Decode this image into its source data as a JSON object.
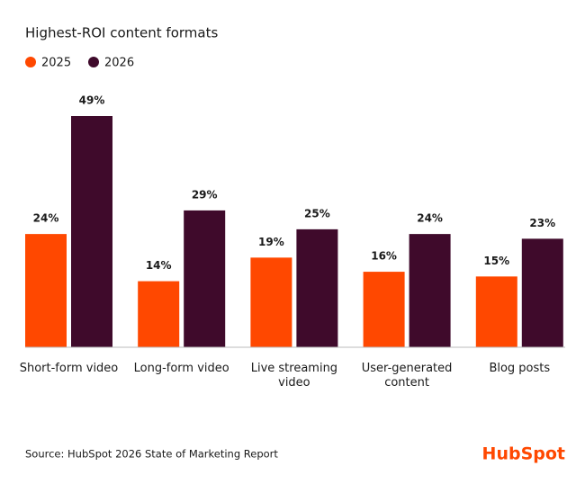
{
  "chart_data": {
    "type": "bar",
    "title": "Highest-ROI content formats",
    "categories": [
      "Short-form video",
      "Long-form video",
      "Live streaming video",
      "User-generated content",
      "Blog posts"
    ],
    "series": [
      {
        "name": "2025",
        "color": "#ff4800",
        "values": [
          24,
          14,
          19,
          16,
          15
        ],
        "value_labels": [
          "24%",
          "14%",
          "19%",
          "16%",
          "15%"
        ]
      },
      {
        "name": "2026",
        "color": "#3f0a2b",
        "values": [
          49,
          29,
          25,
          24,
          23
        ],
        "value_labels": [
          "49%",
          "29%",
          "25%",
          "24%",
          "23%"
        ]
      }
    ],
    "source": "Source: HubSpot 2026 State of Marketing Report",
    "brand": "HubSpot"
  }
}
